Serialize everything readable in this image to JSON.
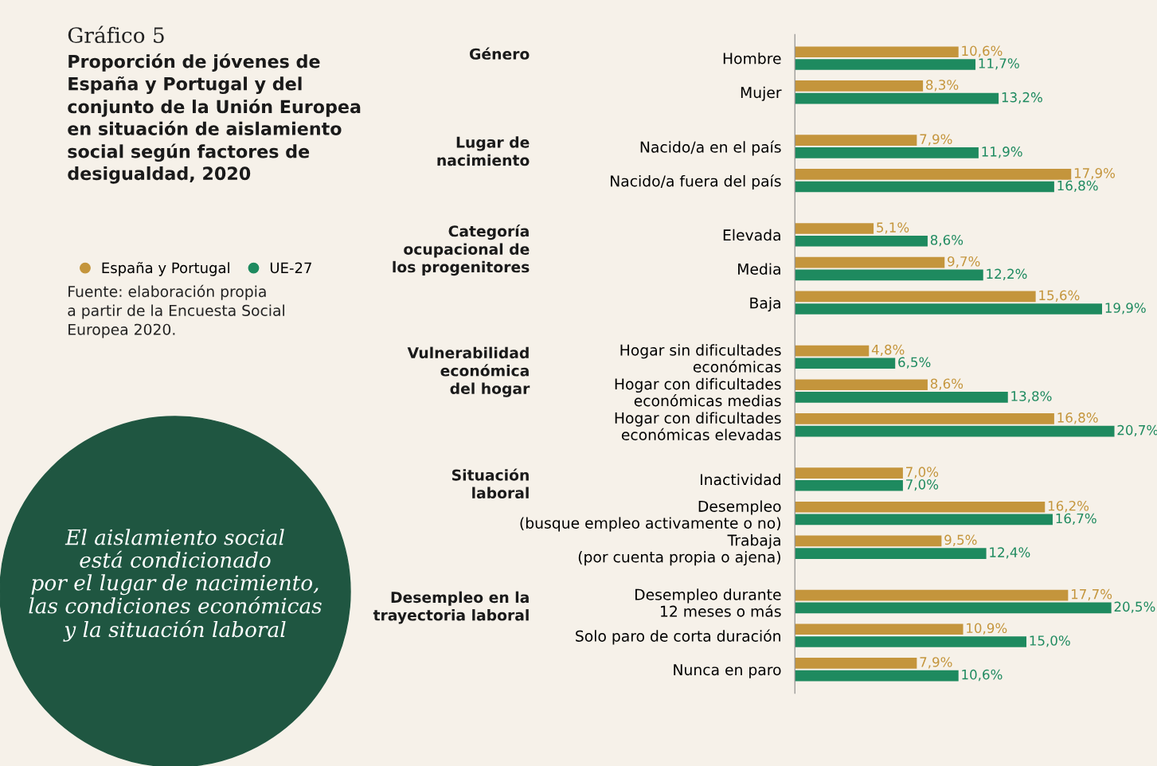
{
  "chart_data": {
    "type": "bar",
    "orientation": "horizontal",
    "title": "Gráfico 5",
    "subtitle": "Proporción de jóvenes de\nEspaña y Portugal y del\nconjunto de la Unión Europea\nen situación de aislamiento\nsocial según factores de\ndesigualdad, 2020",
    "categories": [
      "Hombre",
      "Mujer",
      "Nacido/a en el país",
      "Nacido/a fuera del país",
      "Elevada",
      "Media",
      "Baja",
      "Hogar sin dificultades\neconómicas",
      "Hogar con dificultades\neconómicas medias",
      "Hogar con dificultades\neconómicas elevadas",
      "Inactividad",
      "Desempleo\n(busque empleo activamente o no)",
      "Trabaja\n(por cuenta propia o ajena)",
      "Desempleo durante\n12 meses o más",
      "Solo paro de corta duración",
      "Nunca en paro"
    ],
    "series": [
      {
        "name": "España y Portugal",
        "color": "#c4953c",
        "values": [
          10.6,
          8.3,
          7.9,
          17.9,
          5.1,
          9.7,
          15.6,
          4.8,
          8.6,
          16.8,
          7.0,
          16.2,
          9.5,
          17.7,
          10.9,
          7.9
        ],
        "value_labels": [
          "10,6%",
          "8,3%",
          "7,9%",
          "17,9%",
          "5,1%",
          "9,7%",
          "15,6%",
          "4,8%",
          "8,6%",
          "16,8%",
          "7,0%",
          "16,2%",
          "9,5%",
          "17,7%",
          "10,9%",
          "7,9%"
        ]
      },
      {
        "name": "UE-27",
        "color": "#1e8a5f",
        "values": [
          11.7,
          13.2,
          11.9,
          16.8,
          8.6,
          12.2,
          19.9,
          6.5,
          13.8,
          20.7,
          7.0,
          16.7,
          12.4,
          20.5,
          15.0,
          10.6
        ],
        "value_labels": [
          "11,7%",
          "13,2%",
          "11,9%",
          "16,8%",
          "8,6%",
          "12,2%",
          "19,9%",
          "6,5%",
          "13,8%",
          "20,7%",
          "7,0%",
          "16,7%",
          "12,4%",
          "20,5%",
          "15,0%",
          "10,6%"
        ]
      }
    ],
    "legend": "left",
    "annotations": [
      "Género",
      "Lugar de\nnacimiento",
      "Categoría\nocupacional de\nlos progenitores",
      "Vulnerabilidad\neconómica\ndel hogar",
      "Situación\nlaboral",
      "Desempleo en la\ntrayectoria laboral",
      "Fuente: elaboración propia\na partir de la Encuesta Social\nEuropea 2020.",
      "El aislamiento social\nestá condicionado\npor el lugar de nacimiento,\nlas condiciones económicas\ny la situación laboral"
    ]
  }
}
